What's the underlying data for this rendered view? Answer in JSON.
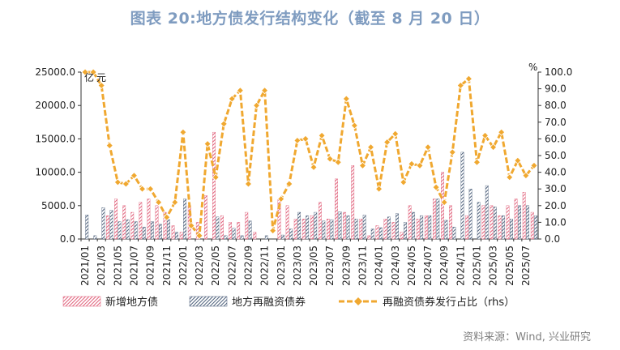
{
  "title": "图表 20:地方债发行结构变化（截至 8 月 20 日）",
  "source": "资料来源：Wind, 兴业研究",
  "chart_data": {
    "type": "bar+line",
    "categories": [
      "2021/01",
      "2021/02",
      "2021/03",
      "2021/04",
      "2021/05",
      "2021/06",
      "2021/07",
      "2021/08",
      "2021/09",
      "2021/10",
      "2021/11",
      "2021/12",
      "2022/01",
      "2022/02",
      "2022/03",
      "2022/04",
      "2022/05",
      "2022/06",
      "2022/07",
      "2022/08",
      "2022/09",
      "2022/10",
      "2022/11",
      "2022/12",
      "2023/01",
      "2023/02",
      "2023/03",
      "2023/04",
      "2023/05",
      "2023/06",
      "2023/07",
      "2023/08",
      "2023/09",
      "2023/10",
      "2023/11",
      "2023/12",
      "2024/01",
      "2024/02",
      "2024/03",
      "2024/04",
      "2024/05",
      "2024/06",
      "2024/07",
      "2024/08",
      "2024/09",
      "2024/10",
      "2024/11",
      "2024/12",
      "2025/01",
      "2025/02",
      "2025/03",
      "2025/04",
      "2025/05",
      "2025/06",
      "2025/07",
      "2025/08"
    ],
    "tick_labels": [
      "2021/01",
      "2021/03",
      "2021/05",
      "2021/07",
      "2021/09",
      "2021/11",
      "2022/01",
      "2022/03",
      "2022/05",
      "2022/07",
      "2022/09",
      "2022/11",
      "2023/01",
      "2023/03",
      "2023/05",
      "2023/07",
      "2023/09",
      "2023/11",
      "2024/01",
      "2024/03",
      "2024/05",
      "2024/07",
      "2024/09",
      "2024/11",
      "2025/01",
      "2025/03",
      "2025/05",
      "2025/07"
    ],
    "series": [
      {
        "name": "新增地方债",
        "type": "bar",
        "axis": "left",
        "values": [
          0,
          0,
          0,
          3500,
          6000,
          5000,
          4000,
          5500,
          6000,
          5000,
          4000,
          2000,
          1000,
          5000,
          2500,
          6500,
          16000,
          3500,
          2500,
          2500,
          4000,
          1000,
          0,
          0,
          6000,
          5000,
          3000,
          3000,
          3500,
          5500,
          3000,
          9000,
          4000,
          11000,
          3000,
          500,
          2000,
          3000,
          2500,
          1000,
          5000,
          3000,
          3500,
          6000,
          10000,
          5000,
          0,
          3500,
          0,
          5000,
          5000,
          3500,
          5000,
          6000,
          7000,
          4000
        ]
      },
      {
        "name": "地方再融资债券",
        "type": "bar",
        "axis": "left",
        "values": [
          3600,
          500,
          4700,
          4300,
          2600,
          2900,
          2600,
          1800,
          2600,
          2200,
          2900,
          1000,
          6000,
          0,
          0,
          0,
          3300,
          500,
          1600,
          500,
          2700,
          0,
          500,
          0,
          600,
          1500,
          4000,
          3500,
          4000,
          2700,
          2900,
          4100,
          3500,
          3000,
          3600,
          1500,
          1700,
          3300,
          3800,
          2500,
          4000,
          3500,
          3500,
          6000,
          2800,
          1800,
          13000,
          7500,
          5500,
          8000,
          4800,
          3500,
          3000,
          5000,
          5000,
          3500
        ]
      },
      {
        "name": "再融资债券发行占比（rhs）",
        "type": "line",
        "axis": "right",
        "values": [
          100,
          100,
          92,
          56,
          34,
          33,
          38,
          30,
          30,
          22,
          13,
          22,
          64,
          8,
          2,
          57,
          37,
          69,
          84,
          89,
          33,
          80,
          89,
          5,
          24,
          33,
          59,
          60,
          43,
          62,
          48,
          46,
          84,
          68,
          44,
          55,
          30,
          58,
          63,
          34,
          45,
          44,
          55,
          31,
          22,
          52,
          92,
          96,
          46,
          62,
          55,
          64,
          37,
          47,
          38,
          44
        ]
      }
    ],
    "y_left": {
      "min": 0,
      "max": 25000,
      "step": 5000,
      "tick_labels": [
        "0.0",
        "5000.0",
        "10000.0",
        "15000.0",
        "20000.0",
        "25000.0"
      ],
      "unit_label": "亿元"
    },
    "y_right": {
      "min": 0,
      "max": 100,
      "step": 10,
      "tick_labels": [
        "0.0",
        "10.0",
        "20.0",
        "30.0",
        "40.0",
        "50.0",
        "60.0",
        "70.0",
        "80.0",
        "90.0",
        "100.0"
      ],
      "unit_label": "%"
    },
    "colors": {
      "new_bond": "#e0607a",
      "refi_bond": "#4c5f7a",
      "ratio_line": "#f0a830",
      "axis": "#333333"
    },
    "legend_position": "bottom",
    "grid": false
  }
}
